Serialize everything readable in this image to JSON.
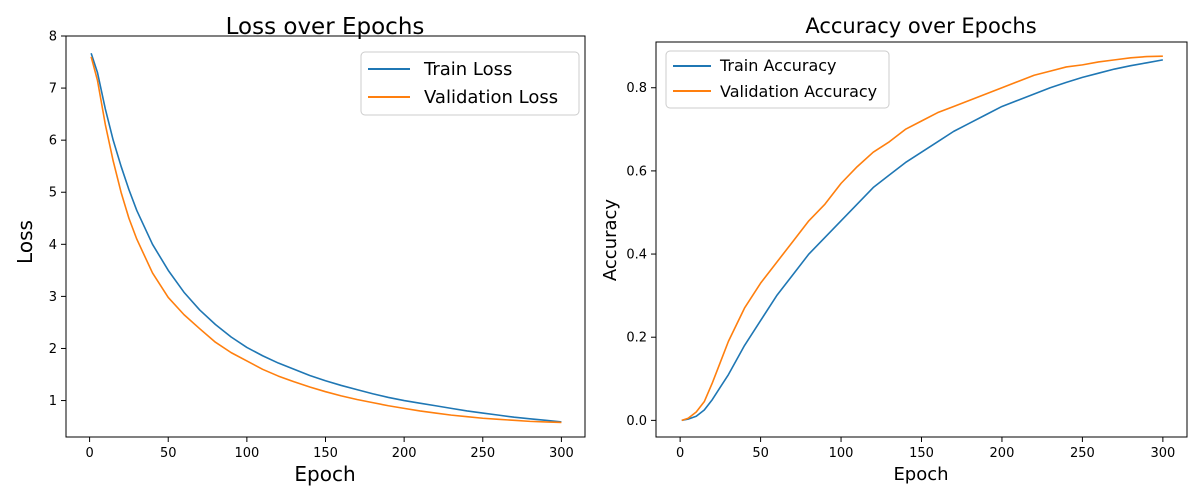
{
  "chart_data": [
    {
      "type": "line",
      "title": "Loss over Epochs",
      "xlabel": "Epoch",
      "ylabel": "Loss",
      "xlim": [
        -15,
        315
      ],
      "ylim": [
        0.3,
        8.0
      ],
      "xticks": [
        0,
        50,
        100,
        150,
        200,
        250,
        300
      ],
      "yticks": [
        1,
        2,
        3,
        4,
        5,
        6,
        7,
        8
      ],
      "grid": false,
      "legend_position": "top-right",
      "series": [
        {
          "name": "Train Loss",
          "color": "#1f77b4",
          "x": [
            1,
            5,
            10,
            15,
            20,
            25,
            30,
            40,
            50,
            60,
            70,
            80,
            90,
            100,
            110,
            120,
            130,
            140,
            150,
            160,
            170,
            180,
            190,
            200,
            210,
            220,
            230,
            240,
            250,
            260,
            270,
            280,
            290,
            300
          ],
          "y": [
            7.67,
            7.3,
            6.6,
            6.0,
            5.5,
            5.05,
            4.65,
            4.0,
            3.5,
            3.08,
            2.74,
            2.46,
            2.22,
            2.02,
            1.86,
            1.72,
            1.6,
            1.48,
            1.38,
            1.29,
            1.21,
            1.13,
            1.06,
            1.0,
            0.95,
            0.9,
            0.85,
            0.8,
            0.76,
            0.72,
            0.68,
            0.65,
            0.62,
            0.59
          ]
        },
        {
          "name": "Validation Loss",
          "color": "#ff7f0e",
          "x": [
            1,
            5,
            10,
            15,
            20,
            25,
            30,
            40,
            50,
            60,
            70,
            80,
            90,
            100,
            110,
            120,
            130,
            140,
            150,
            160,
            170,
            180,
            190,
            200,
            210,
            220,
            230,
            240,
            250,
            260,
            270,
            280,
            290,
            300
          ],
          "y": [
            7.6,
            7.15,
            6.3,
            5.6,
            5.0,
            4.5,
            4.1,
            3.45,
            2.98,
            2.65,
            2.38,
            2.12,
            1.92,
            1.76,
            1.6,
            1.47,
            1.36,
            1.26,
            1.17,
            1.09,
            1.02,
            0.96,
            0.9,
            0.85,
            0.8,
            0.76,
            0.72,
            0.69,
            0.66,
            0.64,
            0.62,
            0.6,
            0.59,
            0.58
          ]
        }
      ]
    },
    {
      "type": "line",
      "title": "Accuracy over Epochs",
      "xlabel": "Epoch",
      "ylabel": "Accuracy",
      "xlim": [
        -15,
        315
      ],
      "ylim": [
        -0.04,
        0.91
      ],
      "xticks": [
        0,
        50,
        100,
        150,
        200,
        250,
        300
      ],
      "yticks": [
        0.0,
        0.2,
        0.4,
        0.6,
        0.8
      ],
      "grid": false,
      "legend_position": "top-left",
      "series": [
        {
          "name": "Train Accuracy",
          "color": "#1f77b4",
          "x": [
            1,
            5,
            10,
            15,
            20,
            25,
            30,
            40,
            50,
            60,
            70,
            80,
            90,
            100,
            110,
            120,
            130,
            140,
            150,
            160,
            170,
            180,
            190,
            200,
            210,
            220,
            230,
            240,
            250,
            260,
            270,
            280,
            290,
            300
          ],
          "y": [
            0.0,
            0.003,
            0.01,
            0.025,
            0.05,
            0.08,
            0.11,
            0.18,
            0.24,
            0.3,
            0.35,
            0.4,
            0.44,
            0.48,
            0.52,
            0.56,
            0.59,
            0.62,
            0.645,
            0.67,
            0.695,
            0.715,
            0.735,
            0.755,
            0.77,
            0.785,
            0.8,
            0.813,
            0.825,
            0.835,
            0.845,
            0.853,
            0.86,
            0.867
          ]
        },
        {
          "name": "Validation Accuracy",
          "color": "#ff7f0e",
          "x": [
            1,
            5,
            10,
            15,
            20,
            25,
            30,
            40,
            50,
            60,
            70,
            80,
            90,
            100,
            110,
            120,
            130,
            140,
            150,
            160,
            170,
            180,
            190,
            200,
            210,
            220,
            230,
            240,
            250,
            260,
            270,
            280,
            290,
            300
          ],
          "y": [
            0.0,
            0.005,
            0.02,
            0.045,
            0.09,
            0.14,
            0.19,
            0.27,
            0.33,
            0.38,
            0.43,
            0.48,
            0.52,
            0.57,
            0.61,
            0.645,
            0.67,
            0.7,
            0.72,
            0.74,
            0.755,
            0.77,
            0.785,
            0.8,
            0.815,
            0.83,
            0.84,
            0.85,
            0.855,
            0.862,
            0.867,
            0.872,
            0.875,
            0.876
          ]
        }
      ]
    }
  ]
}
